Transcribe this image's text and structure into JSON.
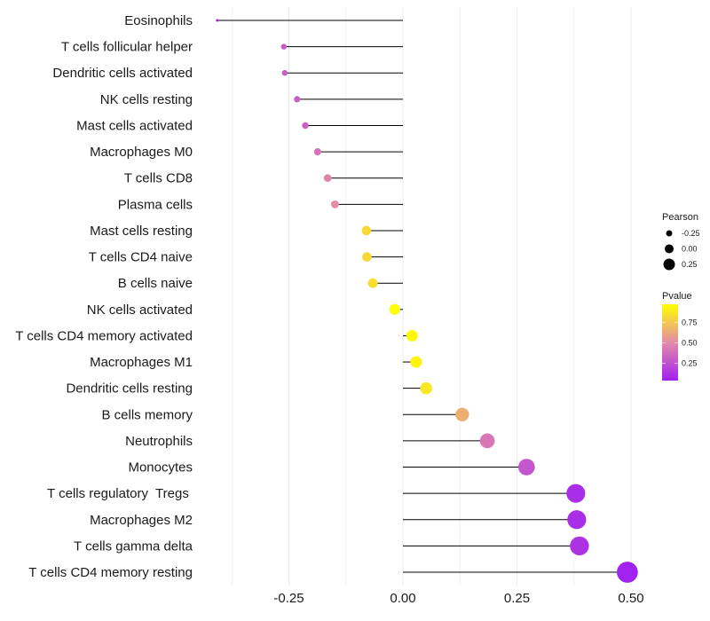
{
  "chart_data": {
    "type": "lollipop",
    "title": "",
    "xlabel": "",
    "ylabel": "",
    "xlim": [
      -0.43,
      0.52
    ],
    "x_ticks": [
      -0.25,
      0.0,
      0.25,
      0.5
    ],
    "x_tick_labels": [
      "-0.25",
      "0.00",
      "0.25",
      "0.50"
    ],
    "grid": true,
    "categories": [
      "Eosinophils",
      "T cells follicular helper",
      "Dendritic cells activated",
      "NK cells resting",
      "Mast cells activated",
      "Macrophages M0",
      "T cells CD8",
      "Plasma cells",
      "Mast cells resting",
      "T cells CD4 naive",
      "B cells naive",
      "NK cells activated",
      "T cells CD4 memory activated",
      "Macrophages M1",
      "Dendritic cells resting",
      "B cells memory",
      "Neutrophils",
      "Monocytes",
      "T cells regulatory  Tregs ",
      "Macrophages M2",
      "T cells gamma delta",
      "T cells CD4 memory resting"
    ],
    "series": [
      {
        "name": "Pearson",
        "values": [
          -0.407,
          -0.261,
          -0.259,
          -0.232,
          -0.214,
          -0.187,
          -0.165,
          -0.149,
          -0.08,
          -0.079,
          -0.066,
          -0.018,
          0.02,
          0.029,
          0.051,
          0.13,
          0.185,
          0.271,
          0.379,
          0.381,
          0.387,
          0.492
        ]
      },
      {
        "name": "Pvalue",
        "values": [
          0.06,
          0.3,
          0.3,
          0.31,
          0.33,
          0.4,
          0.48,
          0.52,
          0.82,
          0.82,
          0.84,
          0.97,
          0.95,
          0.93,
          0.87,
          0.65,
          0.42,
          0.28,
          0.1,
          0.1,
          0.12,
          0.05
        ]
      }
    ],
    "legend": {
      "placement": "right",
      "size": {
        "title": "Pearson",
        "values": [
          -0.25,
          0.0,
          0.25
        ],
        "labels": [
          "-0.25",
          "0.00",
          "0.25"
        ]
      },
      "color": {
        "title": "Pvalue",
        "range": [
          0.04,
          0.97
        ],
        "ticks": [
          0.25,
          0.5,
          0.75
        ],
        "labels": [
          "0.25",
          "0.50",
          "0.75"
        ],
        "low_color": "#A020F0",
        "mid_color": "#E58AA8",
        "high_color": "#FFFF00"
      }
    },
    "colors": {
      "segment": "#000000",
      "grid": "#EBEBEB",
      "text": "#1A1A1A"
    }
  }
}
